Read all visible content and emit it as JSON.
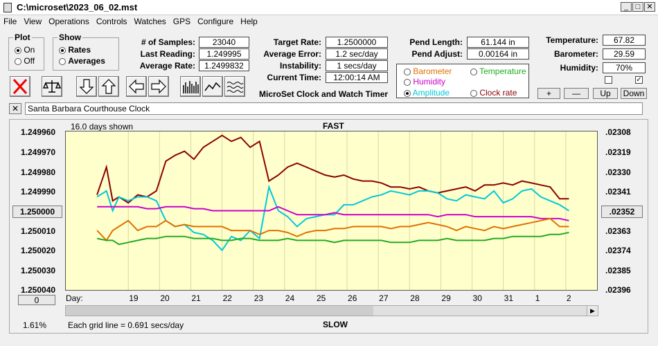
{
  "window": {
    "title": "C:\\microset\\2023_06_02.mst"
  },
  "menu": [
    "File",
    "View",
    "Operations",
    "Controls",
    "Watches",
    "GPS",
    "Configure",
    "Help"
  ],
  "plot_group": {
    "label": "Plot",
    "options": [
      "On",
      "Off"
    ],
    "selected": "On"
  },
  "show_group": {
    "label": "Show",
    "options": [
      "Rates",
      "Averages"
    ],
    "selected": "Rates"
  },
  "stats": {
    "samples_label": "# of Samples:",
    "samples": "23040",
    "last_reading_label": "Last Reading:",
    "last_reading": "1.249995",
    "average_rate_label": "Average Rate:",
    "average_rate": "1.2499832",
    "target_rate_label": "Target Rate:",
    "target_rate": "1.2500000",
    "average_error_label": "Average Error:",
    "average_error": "1.2 sec/day",
    "instability_label": "Instability:",
    "instability": "1 secs/day",
    "current_time_label": "Current Time:",
    "current_time": "12:00:14 AM",
    "pend_length_label": "Pend Length:",
    "pend_length": "61.144 in",
    "pend_adjust_label": "Pend Adjust:",
    "pend_adjust": "0.00164 in",
    "temperature_label": "Temperature:",
    "temperature": "67.82",
    "barometer_label": "Barometer:",
    "barometer": "29.59",
    "humidity_label": "Humidity:",
    "humidity": "70%"
  },
  "app_subtitle": "MicroSet Clock and Watch Timer",
  "overlay_options": [
    {
      "label": "Barometer",
      "color": "#e07000",
      "selected": false
    },
    {
      "label": "Temperature",
      "color": "#22aa22",
      "selected": false
    },
    {
      "label": "Humidity",
      "color": "#cc00cc",
      "selected": false
    },
    {
      "label": "Amplitude",
      "color": "#00c8d8",
      "selected": true
    },
    {
      "label": "Clock rate",
      "color": "#8b0000",
      "selected": false
    }
  ],
  "adjust_buttons": {
    "plus": "+",
    "minus": "—",
    "up": "Up",
    "down": "Down"
  },
  "env_checks": [
    false,
    true
  ],
  "description": "Santa Barbara Courthouse Clock",
  "close_x": "✕",
  "plot": {
    "days_shown": "16.0 days shown",
    "top_label": "FAST",
    "bottom_label": "SLOW",
    "grid_note": "Each grid line = 0.691 secs/day",
    "percent": "1.61%",
    "center_left": "1.250000",
    "center_right": ".02352",
    "zero_button": "0",
    "day_label": "Day:"
  },
  "chart_data": {
    "type": "line",
    "ylabel_left_ticks": [
      "1.249960",
      "1.249970",
      "1.249980",
      "1.249990",
      "1.250000",
      "1.250010",
      "1.250020",
      "1.250030",
      "1.250040"
    ],
    "ylabel_right_ticks": [
      ".02308",
      ".02319",
      ".02330",
      ".02341",
      ".02352",
      ".02363",
      ".02374",
      ".02385",
      ".02396"
    ],
    "ylim_left": [
      1.24996,
      1.25004
    ],
    "x_ticks": [
      "19",
      "20",
      "21",
      "22",
      "23",
      "24",
      "25",
      "26",
      "27",
      "28",
      "29",
      "30",
      "31",
      "1",
      "2"
    ],
    "x": [
      18.0,
      18.3,
      18.5,
      18.7,
      19.0,
      19.3,
      19.6,
      19.9,
      20.2,
      20.5,
      20.8,
      21.1,
      21.4,
      21.7,
      22.0,
      22.3,
      22.6,
      22.9,
      23.2,
      23.5,
      23.8,
      24.1,
      24.4,
      24.7,
      25.0,
      25.3,
      25.6,
      25.9,
      26.2,
      26.5,
      26.8,
      27.1,
      27.4,
      27.7,
      28.0,
      28.3,
      28.6,
      28.9,
      29.2,
      29.5,
      29.8,
      30.1,
      30.4,
      30.7,
      31.0,
      31.3,
      31.6,
      31.9,
      32.2,
      32.5,
      32.8,
      33.1
    ],
    "series": [
      {
        "color": "#8b0000",
        "values": [
          1.249992,
          1.249978,
          1.249995,
          1.249993,
          1.249996,
          1.249992,
          1.249993,
          1.24999,
          1.249975,
          1.249972,
          1.24997,
          1.249974,
          1.249968,
          1.249965,
          1.249962,
          1.249965,
          1.249963,
          1.249968,
          1.249965,
          1.249985,
          1.249982,
          1.249978,
          1.249976,
          1.249978,
          1.24998,
          1.249982,
          1.249983,
          1.249982,
          1.249984,
          1.249985,
          1.249985,
          1.249986,
          1.249988,
          1.249988,
          1.249989,
          1.249988,
          1.24999,
          1.249991,
          1.24999,
          1.249989,
          1.249988,
          1.24999,
          1.249987,
          1.249987,
          1.249986,
          1.249987,
          1.249985,
          1.249986,
          1.249987,
          1.249988,
          1.249994,
          1.249994
        ]
      },
      {
        "color": "#00c8d8",
        "values": [
          1.249993,
          1.24999,
          1.25,
          1.249993,
          1.249995,
          1.249993,
          1.249993,
          1.249995,
          1.250005,
          1.250008,
          1.250007,
          1.250011,
          1.250012,
          1.250015,
          1.25002,
          1.250013,
          1.250015,
          1.25001,
          1.250014,
          1.249988,
          1.25,
          1.250003,
          1.250008,
          1.250004,
          1.250003,
          1.250002,
          1.250002,
          1.249997,
          1.249997,
          1.249995,
          1.249993,
          1.249992,
          1.24999,
          1.249991,
          1.249992,
          1.24999,
          1.24999,
          1.249991,
          1.249994,
          1.249995,
          1.249992,
          1.249993,
          1.249994,
          1.24999,
          1.249996,
          1.249994,
          1.24999,
          1.249989,
          1.249993,
          1.249995,
          1.249997,
          1.25
        ]
      },
      {
        "color": "#cc00cc",
        "values": [
          1.249998,
          1.249998,
          1.249998,
          1.249998,
          1.249998,
          1.249998,
          1.249999,
          1.249999,
          1.249998,
          1.249998,
          1.249998,
          1.249999,
          1.249999,
          1.25,
          1.25,
          1.25,
          1.25,
          1.25,
          1.25,
          1.25,
          1.249998,
          1.25,
          1.250002,
          1.250002,
          1.250002,
          1.250002,
          1.250001,
          1.250002,
          1.250002,
          1.250002,
          1.250002,
          1.250002,
          1.250002,
          1.250002,
          1.250002,
          1.250002,
          1.250002,
          1.250003,
          1.250002,
          1.250002,
          1.250002,
          1.250003,
          1.250003,
          1.250003,
          1.250003,
          1.250003,
          1.250003,
          1.250003,
          1.250004,
          1.250004,
          1.250004,
          1.250005
        ]
      },
      {
        "color": "#e07000",
        "values": [
          1.25001,
          1.250015,
          1.25001,
          1.250008,
          1.250005,
          1.25001,
          1.250008,
          1.250008,
          1.250005,
          1.250008,
          1.250007,
          1.250008,
          1.250008,
          1.250008,
          1.250008,
          1.25001,
          1.25001,
          1.25001,
          1.250012,
          1.25001,
          1.25001,
          1.250011,
          1.250013,
          1.250011,
          1.25001,
          1.25001,
          1.250009,
          1.250009,
          1.250008,
          1.250008,
          1.250008,
          1.250008,
          1.250009,
          1.250008,
          1.250008,
          1.250007,
          1.250006,
          1.250007,
          1.250008,
          1.25001,
          1.250008,
          1.250009,
          1.25001,
          1.250008,
          1.250009,
          1.250008,
          1.250007,
          1.250006,
          1.250005,
          1.250004,
          1.250008,
          1.250008
        ]
      },
      {
        "color": "#22aa22",
        "values": [
          1.250014,
          1.250015,
          1.250015,
          1.250017,
          1.250016,
          1.250015,
          1.250014,
          1.250014,
          1.250013,
          1.250013,
          1.250013,
          1.250014,
          1.250014,
          1.250014,
          1.250015,
          1.250015,
          1.250014,
          1.250014,
          1.250015,
          1.250015,
          1.250015,
          1.250014,
          1.250015,
          1.250015,
          1.250015,
          1.250015,
          1.250016,
          1.250015,
          1.250015,
          1.250015,
          1.250015,
          1.250015,
          1.250016,
          1.250016,
          1.250016,
          1.250015,
          1.250015,
          1.250015,
          1.250014,
          1.250015,
          1.250015,
          1.250015,
          1.250015,
          1.250014,
          1.250014,
          1.250013,
          1.250013,
          1.250013,
          1.250013,
          1.250012,
          1.250012,
          1.250011
        ]
      }
    ]
  }
}
